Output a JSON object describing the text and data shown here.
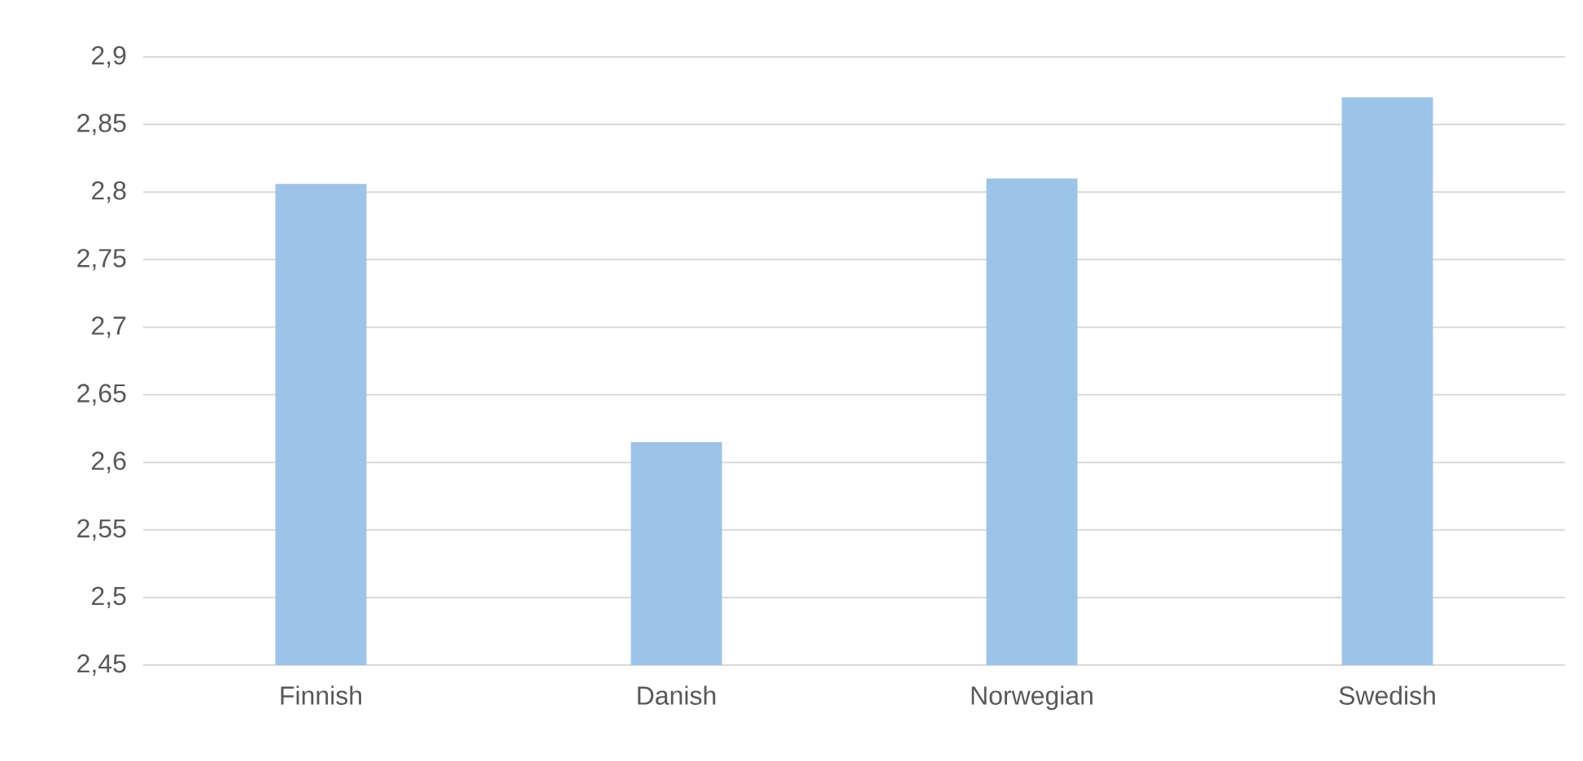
{
  "chart_data": {
    "type": "bar",
    "categories": [
      "Finnish",
      "Danish",
      "Norwegian",
      "Swedish"
    ],
    "values": [
      2.806,
      2.615,
      2.81,
      2.87
    ],
    "color": "#9dc3e6",
    "ylim": [
      2.45,
      2.9
    ],
    "yticks": [
      {
        "value": 2.45,
        "label": "2,45"
      },
      {
        "value": 2.5,
        "label": "2,5"
      },
      {
        "value": 2.55,
        "label": "2,55"
      },
      {
        "value": 2.6,
        "label": "2,6"
      },
      {
        "value": 2.65,
        "label": "2,65"
      },
      {
        "value": 2.7,
        "label": "2,7"
      },
      {
        "value": 2.75,
        "label": "2,75"
      },
      {
        "value": 2.8,
        "label": "2,8"
      },
      {
        "value": 2.85,
        "label": "2,85"
      },
      {
        "value": 2.9,
        "label": "2,9"
      }
    ],
    "grid": "y"
  }
}
